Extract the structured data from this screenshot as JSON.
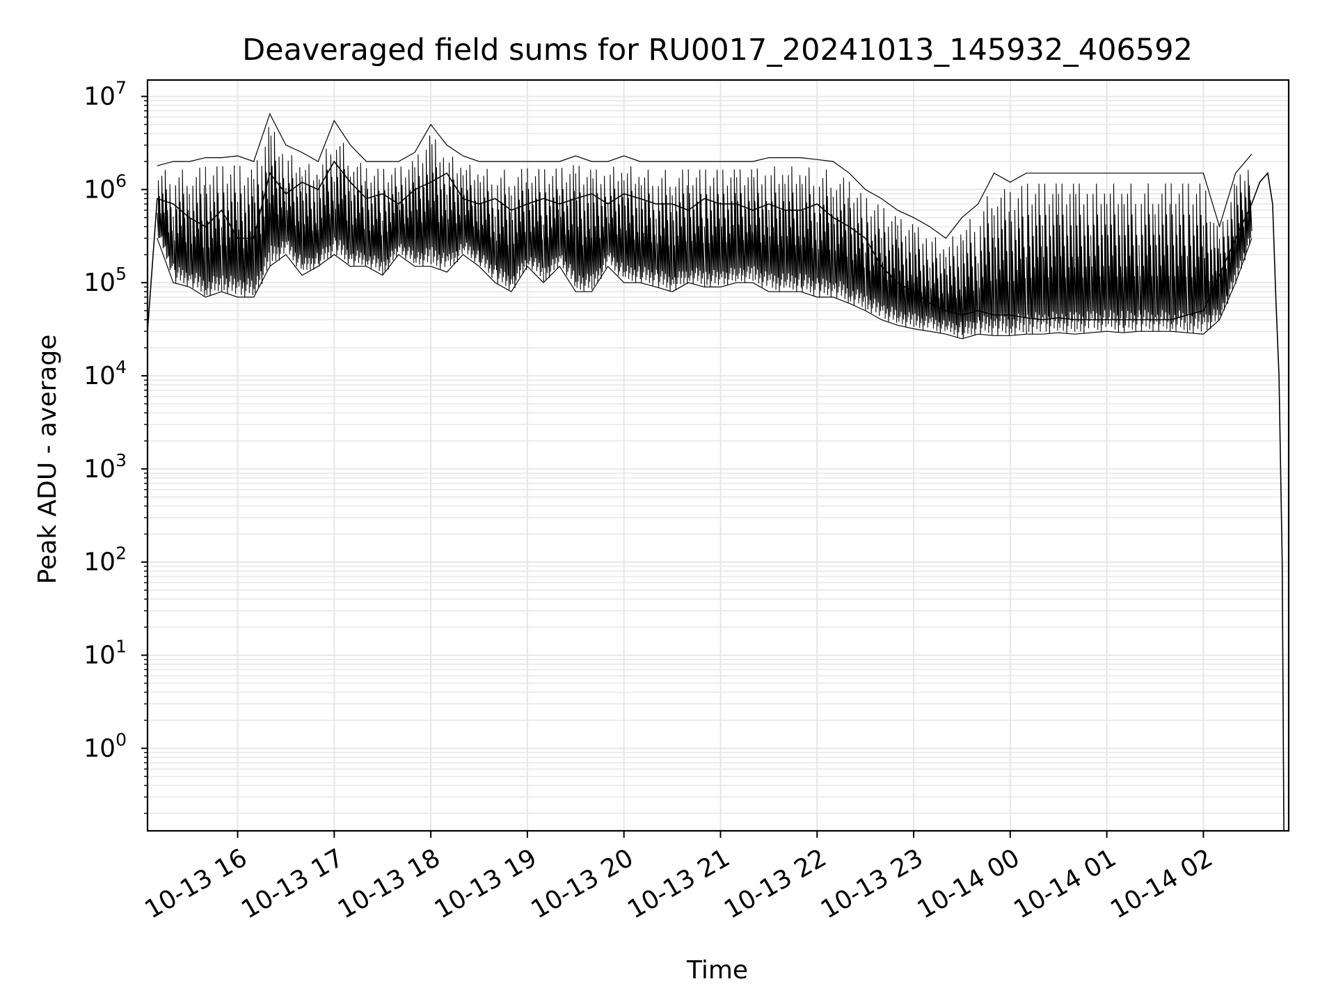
{
  "chart_data": {
    "type": "line",
    "title": "Deaveraged field sums for RU0017_20241013_145932_406592",
    "xlabel": "Time",
    "ylabel": "Peak ADU - average",
    "yscale": "log",
    "ylim": [
      0.13,
      15000000
    ],
    "xlim": [
      "2024-10-13 15:04",
      "2024-10-14 02:53"
    ],
    "grid": "on (major and minor)",
    "colors": {
      "line": "#000000",
      "grid": "#e6e6e6",
      "axes": "#000000",
      "background": "#ffffff"
    },
    "x_ticks": [
      "10-13 16",
      "10-13 17",
      "10-13 18",
      "10-13 19",
      "10-13 20",
      "10-13 21",
      "10-13 22",
      "10-13 23",
      "10-14 00",
      "10-14 01",
      "10-14 02"
    ],
    "y_ticks": [
      {
        "base": "10",
        "exp": "0"
      },
      {
        "base": "10",
        "exp": "1"
      },
      {
        "base": "10",
        "exp": "2"
      },
      {
        "base": "10",
        "exp": "3"
      },
      {
        "base": "10",
        "exp": "4"
      },
      {
        "base": "10",
        "exp": "5"
      },
      {
        "base": "10",
        "exp": "6"
      },
      {
        "base": "10",
        "exp": "7"
      }
    ],
    "series": [
      {
        "color": "#000000",
        "x": [
          "2024-10-13 15:04",
          "2024-10-13 15:10",
          "2024-10-13 15:20",
          "2024-10-13 15:30",
          "2024-10-13 15:40",
          "2024-10-13 15:50",
          "2024-10-13 16:00",
          "2024-10-13 16:10",
          "2024-10-13 16:20",
          "2024-10-13 16:30",
          "2024-10-13 16:40",
          "2024-10-13 16:50",
          "2024-10-13 17:00",
          "2024-10-13 17:10",
          "2024-10-13 17:20",
          "2024-10-13 17:30",
          "2024-10-13 17:40",
          "2024-10-13 17:50",
          "2024-10-13 18:00",
          "2024-10-13 18:10",
          "2024-10-13 18:20",
          "2024-10-13 18:30",
          "2024-10-13 18:40",
          "2024-10-13 18:50",
          "2024-10-13 19:00",
          "2024-10-13 19:10",
          "2024-10-13 19:20",
          "2024-10-13 19:30",
          "2024-10-13 19:40",
          "2024-10-13 19:50",
          "2024-10-13 20:00",
          "2024-10-13 20:10",
          "2024-10-13 20:20",
          "2024-10-13 20:30",
          "2024-10-13 20:40",
          "2024-10-13 20:50",
          "2024-10-13 21:00",
          "2024-10-13 21:10",
          "2024-10-13 21:20",
          "2024-10-13 21:30",
          "2024-10-13 21:40",
          "2024-10-13 21:50",
          "2024-10-13 22:00",
          "2024-10-13 22:10",
          "2024-10-13 22:20",
          "2024-10-13 22:30",
          "2024-10-13 22:40",
          "2024-10-13 22:50",
          "2024-10-13 23:00",
          "2024-10-13 23:10",
          "2024-10-13 23:20",
          "2024-10-13 23:30",
          "2024-10-13 23:40",
          "2024-10-13 23:50",
          "2024-10-14 00:00",
          "2024-10-14 00:10",
          "2024-10-14 00:20",
          "2024-10-14 00:30",
          "2024-10-14 00:40",
          "2024-10-14 00:50",
          "2024-10-14 01:00",
          "2024-10-14 01:10",
          "2024-10-14 01:20",
          "2024-10-14 01:30",
          "2024-10-14 01:40",
          "2024-10-14 01:50",
          "2024-10-14 02:00",
          "2024-10-14 02:10",
          "2024-10-14 02:20",
          "2024-10-14 02:30",
          "2024-10-14 02:35",
          "2024-10-14 02:40",
          "2024-10-14 02:43",
          "2024-10-14 02:45",
          "2024-10-14 02:47",
          "2024-10-14 02:49",
          "2024-10-14 02:50"
        ],
        "y": [
          30000,
          800000,
          700000,
          500000,
          400000,
          600000,
          300000,
          300000,
          1500000,
          900000,
          1200000,
          1000000,
          2000000,
          1200000,
          800000,
          900000,
          700000,
          1000000,
          1200000,
          1500000,
          800000,
          700000,
          800000,
          600000,
          700000,
          800000,
          700000,
          800000,
          900000,
          700000,
          900000,
          800000,
          700000,
          700000,
          600000,
          800000,
          700000,
          700000,
          600000,
          700000,
          600000,
          600000,
          700000,
          500000,
          400000,
          300000,
          150000,
          100000,
          80000,
          60000,
          50000,
          45000,
          50000,
          45000,
          45000,
          42000,
          40000,
          42000,
          40000,
          40000,
          40000,
          40000,
          40000,
          40000,
          40000,
          45000,
          50000,
          120000,
          300000,
          700000,
          1200000,
          1500000,
          700000,
          70000,
          10000,
          100,
          0.13
        ]
      }
    ],
    "envelope": {
      "note": "values sampled from the plotted trace; low / high show the spread of the noisy signal",
      "x": [
        "2024-10-13 15:10",
        "2024-10-13 15:20",
        "2024-10-13 15:30",
        "2024-10-13 15:40",
        "2024-10-13 15:50",
        "2024-10-13 16:00",
        "2024-10-13 16:10",
        "2024-10-13 16:20",
        "2024-10-13 16:30",
        "2024-10-13 16:40",
        "2024-10-13 16:50",
        "2024-10-13 17:00",
        "2024-10-13 17:10",
        "2024-10-13 17:20",
        "2024-10-13 17:30",
        "2024-10-13 17:40",
        "2024-10-13 17:50",
        "2024-10-13 18:00",
        "2024-10-13 18:10",
        "2024-10-13 18:20",
        "2024-10-13 18:30",
        "2024-10-13 18:40",
        "2024-10-13 18:50",
        "2024-10-13 19:00",
        "2024-10-13 19:10",
        "2024-10-13 19:20",
        "2024-10-13 19:30",
        "2024-10-13 19:40",
        "2024-10-13 19:50",
        "2024-10-13 20:00",
        "2024-10-13 20:10",
        "2024-10-13 20:20",
        "2024-10-13 20:30",
        "2024-10-13 20:40",
        "2024-10-13 20:50",
        "2024-10-13 21:00",
        "2024-10-13 21:10",
        "2024-10-13 21:20",
        "2024-10-13 21:30",
        "2024-10-13 21:40",
        "2024-10-13 21:50",
        "2024-10-13 22:00",
        "2024-10-13 22:10",
        "2024-10-13 22:20",
        "2024-10-13 22:30",
        "2024-10-13 22:40",
        "2024-10-13 22:50",
        "2024-10-13 23:00",
        "2024-10-13 23:10",
        "2024-10-13 23:20",
        "2024-10-13 23:30",
        "2024-10-13 23:40",
        "2024-10-13 23:50",
        "2024-10-14 00:00",
        "2024-10-14 00:10",
        "2024-10-14 00:20",
        "2024-10-14 00:30",
        "2024-10-14 00:40",
        "2024-10-14 00:50",
        "2024-10-14 01:00",
        "2024-10-14 01:10",
        "2024-10-14 01:20",
        "2024-10-14 01:30",
        "2024-10-14 01:40",
        "2024-10-14 01:50",
        "2024-10-14 02:00",
        "2024-10-14 02:10",
        "2024-10-14 02:20",
        "2024-10-14 02:30"
      ],
      "low": [
        300000,
        100000,
        90000,
        70000,
        80000,
        70000,
        70000,
        150000,
        200000,
        120000,
        150000,
        200000,
        150000,
        150000,
        120000,
        200000,
        150000,
        150000,
        130000,
        200000,
        150000,
        100000,
        80000,
        150000,
        100000,
        150000,
        80000,
        80000,
        150000,
        100000,
        100000,
        90000,
        80000,
        100000,
        90000,
        90000,
        100000,
        100000,
        80000,
        80000,
        80000,
        70000,
        70000,
        60000,
        50000,
        40000,
        35000,
        32000,
        30000,
        28000,
        25000,
        28000,
        27000,
        27000,
        28000,
        28000,
        29000,
        28000,
        29000,
        30000,
        29000,
        30000,
        30000,
        30000,
        29000,
        28000,
        40000,
        100000,
        300000
      ],
      "high": [
        1800000,
        2000000,
        2000000,
        2200000,
        2200000,
        2300000,
        2000000,
        6500000,
        3000000,
        2500000,
        2000000,
        5500000,
        3000000,
        2000000,
        2000000,
        2000000,
        2500000,
        5000000,
        3000000,
        2300000,
        2000000,
        2000000,
        2000000,
        2000000,
        2000000,
        2000000,
        2300000,
        2000000,
        2000000,
        2300000,
        2000000,
        2000000,
        2000000,
        2000000,
        2000000,
        2000000,
        2000000,
        2000000,
        2200000,
        2200000,
        2200000,
        2100000,
        2000000,
        1500000,
        1000000,
        800000,
        600000,
        500000,
        400000,
        300000,
        500000,
        700000,
        1500000,
        1200000,
        1500000,
        1500000,
        1500000,
        1500000,
        1500000,
        1500000,
        1500000,
        1500000,
        1500000,
        1500000,
        1500000,
        1500000,
        400000,
        1500000,
        2400000
      ]
    }
  }
}
